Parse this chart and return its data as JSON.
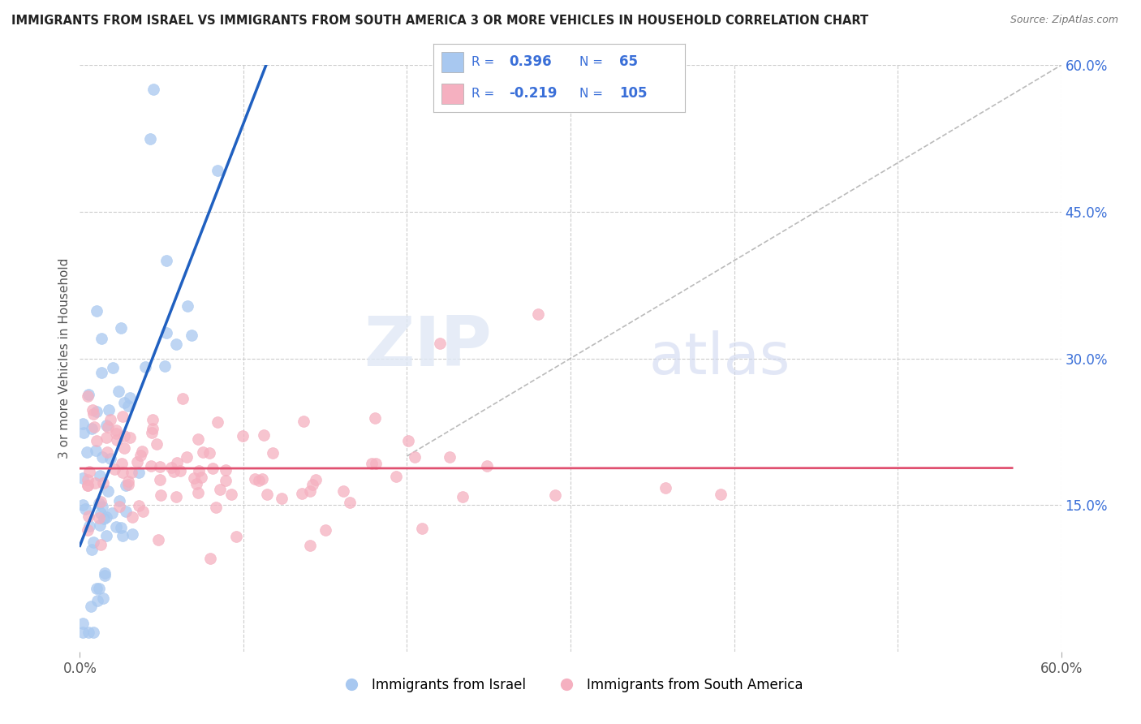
{
  "title": "IMMIGRANTS FROM ISRAEL VS IMMIGRANTS FROM SOUTH AMERICA 3 OR MORE VEHICLES IN HOUSEHOLD CORRELATION CHART",
  "source": "Source: ZipAtlas.com",
  "ylabel": "3 or more Vehicles in Household",
  "x_min": 0.0,
  "x_max": 0.6,
  "y_min": 0.0,
  "y_max": 0.6,
  "y_ticks_right": [
    0.15,
    0.3,
    0.45,
    0.6
  ],
  "y_tick_labels_right": [
    "15.0%",
    "30.0%",
    "45.0%",
    "60.0%"
  ],
  "grid_color": "#cccccc",
  "background_color": "#ffffff",
  "blue_color": "#a8c8f0",
  "pink_color": "#f5b0c0",
  "blue_line_color": "#2060c0",
  "pink_line_color": "#e05070",
  "R_blue": 0.396,
  "N_blue": 65,
  "R_pink": -0.219,
  "N_pink": 105,
  "legend_label_blue": "Immigrants from Israel",
  "legend_label_pink": "Immigrants from South America",
  "watermark_zip": "ZIP",
  "watermark_atlas": "atlas",
  "legend_text_color": "#3a6fd8",
  "right_tick_color": "#3a6fd8"
}
